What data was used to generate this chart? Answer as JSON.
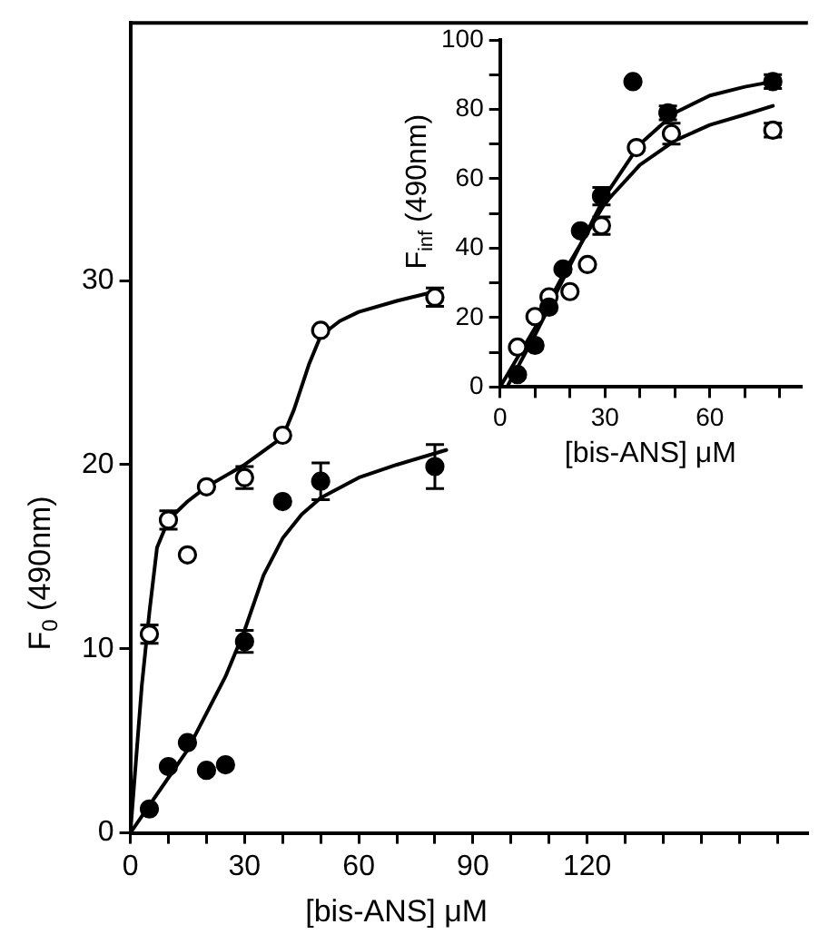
{
  "chart_data": [
    {
      "type": "scatter",
      "xlabel": "[bis-ANS] μM",
      "ylabel": "F$_{0}$ (490nm)",
      "xlim": [
        0,
        178
      ],
      "ylim": [
        0,
        44
      ],
      "xticks": [
        0,
        {
          "value": 10,
          "label": null
        },
        {
          "value": 20,
          "label": null
        },
        30,
        {
          "value": 40,
          "label": null
        },
        {
          "value": 50,
          "label": null
        },
        60,
        {
          "value": 70,
          "label": null
        },
        {
          "value": 80,
          "label": null
        },
        90,
        {
          "value": 100,
          "label": null
        },
        {
          "value": 110,
          "label": null
        },
        120,
        {
          "value": 130,
          "label": null
        },
        {
          "value": 140,
          "label": null
        },
        {
          "value": 150,
          "label": null
        },
        {
          "value": 160,
          "label": null
        },
        {
          "value": 170,
          "label": null
        }
      ],
      "yticks": [
        0,
        10,
        20,
        30
      ],
      "marker": "circle",
      "series": [
        {
          "type": "scatter",
          "color": "#ffffff",
          "x": [
            5,
            10,
            15,
            20,
            30,
            40,
            50,
            80
          ],
          "values": [
            10.8,
            17,
            15.1,
            18.8,
            19.3,
            21.6,
            27.3,
            29.1
          ],
          "errors": [
            0.5,
            0.5,
            null,
            null,
            0.6,
            null,
            null,
            0.5
          ]
        },
        {
          "type": "scatter",
          "color": "#000000",
          "x": [
            5,
            10,
            15,
            20,
            25,
            30,
            40,
            50,
            80
          ],
          "values": [
            1.3,
            3.6,
            4.9,
            3.4,
            3.7,
            10.4,
            18,
            19.1,
            19.9
          ],
          "errors": [
            null,
            null,
            null,
            null,
            null,
            0.6,
            null,
            1,
            1.2
          ]
        },
        {
          "type": "line",
          "color": "#000000",
          "marker": "none",
          "x": [
            0,
            3,
            5,
            7,
            10,
            15,
            20,
            30,
            40,
            43,
            47,
            50,
            55,
            60,
            70,
            80
          ],
          "values": [
            0,
            8,
            12,
            15.5,
            17,
            18,
            18.8,
            20,
            21.5,
            23,
            25.5,
            27,
            27.8,
            28.3,
            28.9,
            29.4
          ]
        },
        {
          "type": "line",
          "color": "#000000",
          "marker": "none",
          "x": [
            0,
            5,
            10,
            15,
            20,
            25,
            30,
            35,
            40,
            45,
            50,
            60,
            70,
            83
          ],
          "values": [
            0,
            1.5,
            3,
            4.5,
            6.5,
            8.5,
            11,
            14,
            16,
            17.3,
            18.2,
            19.3,
            20,
            20.8
          ]
        }
      ]
    },
    {
      "type": "scatter",
      "xlabel": "[bis-ANS] μM",
      "ylabel": "F$_{inf}$ (490nm)",
      "xlim": [
        0,
        86
      ],
      "ylim": [
        0,
        100
      ],
      "xticks": [
        0,
        {
          "value": 10,
          "label": null
        },
        {
          "value": 20,
          "label": null
        },
        30,
        {
          "value": 40,
          "label": null
        },
        {
          "value": 50,
          "label": null
        },
        60,
        {
          "value": 70,
          "label": null
        },
        {
          "value": 80,
          "label": null
        }
      ],
      "yticks": [
        0,
        {
          "value": 10,
          "label": null
        },
        20,
        {
          "value": 30,
          "label": null
        },
        40,
        {
          "value": 50,
          "label": null
        },
        60,
        {
          "value": 70,
          "label": null
        },
        80,
        {
          "value": 90,
          "label": null
        },
        100
      ],
      "marker": "circle",
      "series": [
        {
          "type": "scatter",
          "color": "#000000",
          "x": [
            5,
            10,
            14,
            18,
            23,
            29,
            38,
            48,
            78
          ],
          "values": [
            3.6,
            12,
            23,
            34,
            45,
            55,
            88,
            79,
            88
          ],
          "errors": [
            null,
            null,
            null,
            null,
            null,
            2.5,
            null,
            2,
            2
          ]
        },
        {
          "type": "scatter",
          "color": "#ffffff",
          "x": [
            5,
            10,
            14,
            20,
            25,
            29,
            39,
            49,
            78
          ],
          "values": [
            11.5,
            20.3,
            26,
            27.5,
            35.3,
            46.5,
            69,
            73,
            74
          ],
          "errors": [
            null,
            null,
            null,
            null,
            null,
            2.5,
            null,
            3,
            2
          ]
        },
        {
          "type": "line",
          "color": "#000000",
          "marker": "none",
          "x": [
            2,
            10,
            20,
            30,
            40,
            50,
            60,
            70,
            78
          ],
          "values": [
            0,
            15,
            35,
            55,
            70,
            79,
            84,
            86.5,
            88
          ]
        },
        {
          "type": "line",
          "color": "#000000",
          "marker": "none",
          "x": [
            0,
            10,
            20,
            30,
            40,
            50,
            60,
            70,
            78
          ],
          "values": [
            0,
            17,
            36,
            53,
            64,
            71,
            75.5,
            78.5,
            81
          ]
        }
      ]
    }
  ]
}
